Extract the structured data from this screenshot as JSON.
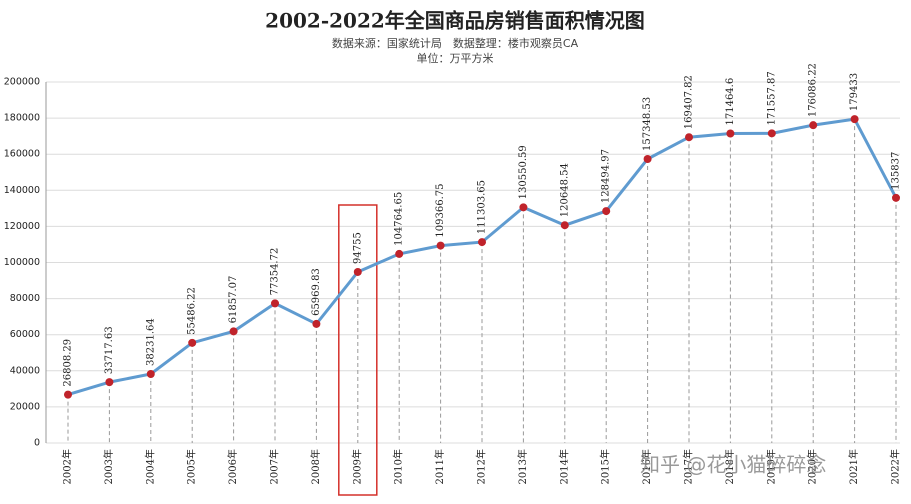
{
  "chart_data": {
    "type": "line",
    "title": "2002-2022年全国商品房销售面积情况图",
    "subtitle": "数据来源：国家统计局　数据整理：楼市观察员CA",
    "unit": "单位：万平方米",
    "watermark": "知乎 @花小猫碎碎念",
    "categories": [
      "2002年",
      "2003年",
      "2004年",
      "2005年",
      "2006年",
      "2007年",
      "2008年",
      "2009年",
      "2010年",
      "2011年",
      "2012年",
      "2013年",
      "2014年",
      "2015年",
      "2016年",
      "2017年",
      "2018年",
      "2019年",
      "2020年",
      "2021年",
      "2022年"
    ],
    "values": [
      26808.29,
      33717.63,
      38231.64,
      55486.22,
      61857.07,
      77354.72,
      65969.83,
      94755,
      104764.65,
      109366.75,
      111303.65,
      130550.59,
      120648.54,
      128494.97,
      157348.53,
      169407.82,
      171464.6,
      171557.87,
      176086.22,
      179433,
      135837
    ],
    "color": "#5f9bd0",
    "marker_color": "#c0232b",
    "ylim": [
      0,
      200000
    ],
    "yticks": [
      0,
      20000,
      40000,
      60000,
      80000,
      100000,
      120000,
      140000,
      160000,
      180000,
      200000
    ],
    "grid": true
  }
}
